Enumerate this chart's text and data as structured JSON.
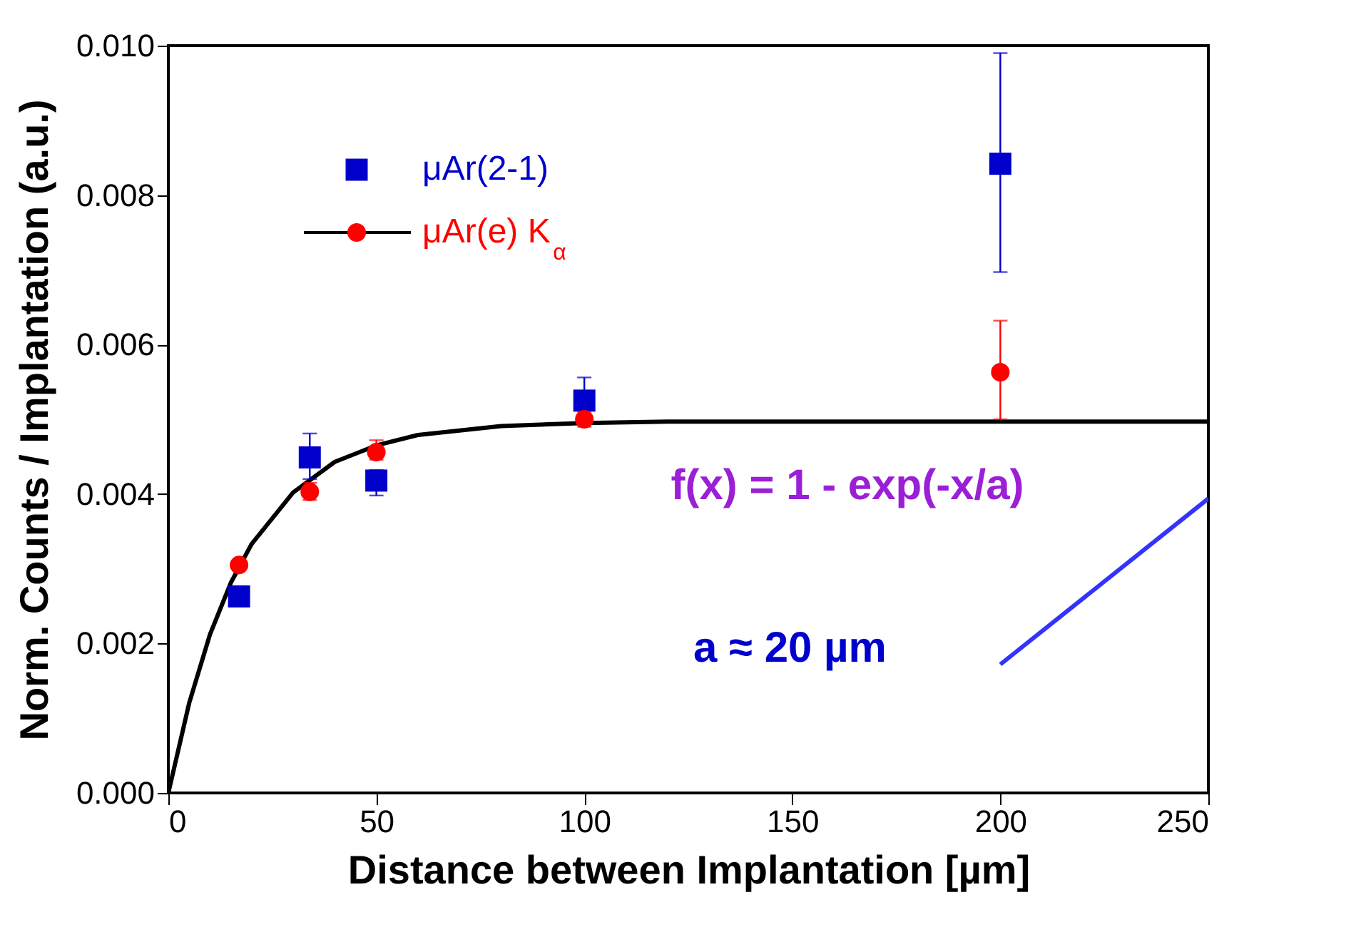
{
  "chart_data": {
    "type": "scatter",
    "xlabel": "Distance between Implantation [µm]",
    "ylabel": "Norm. Counts / Implantation (a.u.)",
    "xlim": [
      0,
      250
    ],
    "xticks": [
      0,
      50,
      100,
      150,
      200,
      250
    ],
    "ylim": [
      0,
      0.01
    ],
    "yticks": [
      {
        "value": 0,
        "label": "0.000"
      },
      {
        "value": 0.002,
        "label": "0.002"
      },
      {
        "value": 0.004,
        "label": "0.004"
      },
      {
        "value": 0.006,
        "label": "0.006"
      },
      {
        "value": 0.008,
        "label": "0.008"
      },
      {
        "value": 0.01,
        "label": "0.010"
      }
    ],
    "grid": false,
    "legend": "top left",
    "annotations": [
      "f(x) = 1 - exp(-x/a)",
      "a ≈ 20 µm"
    ],
    "series": [
      {
        "type": "line",
        "color": "#000000",
        "marker": "none",
        "line_style": "solid",
        "x": [
          0,
          5,
          10,
          15,
          20,
          30,
          40,
          50,
          60,
          80,
          100,
          120,
          150,
          200,
          250
        ],
        "values": [
          0,
          0.0012,
          0.00212,
          0.00281,
          0.00333,
          0.00402,
          0.00443,
          0.00465,
          0.00479,
          0.00491,
          0.00495,
          0.00497,
          0.00497,
          0.00497,
          0.00497
        ]
      },
      {
        "type": "line",
        "color": "#3333ff",
        "marker": "none",
        "line_style": "solid",
        "x": [
          200,
          250
        ],
        "values": [
          0.00172,
          0.00394
        ]
      },
      {
        "name": "μAr(2-1)",
        "color": "#0000cc",
        "marker": "square",
        "x": [
          17,
          34,
          50,
          100,
          200
        ],
        "values": [
          0.00263,
          0.00449,
          0.00418,
          0.00525,
          0.00842
        ],
        "errors": [
          null,
          [
            0.0042,
            0.00481
          ],
          [
            0.00398,
            0.00432
          ],
          [
            0.00505,
            0.00556
          ],
          [
            0.00697,
            0.0099
          ]
        ]
      },
      {
        "name": "μAr(e) K$_{α}$",
        "color": "#ff0000",
        "marker": "circle",
        "x": [
          17,
          34,
          50,
          100,
          200
        ],
        "values": [
          0.00305,
          0.00403,
          0.00456,
          0.005,
          0.00563
        ],
        "errors": [
          null,
          [
            0.00392,
            0.00415
          ],
          [
            0.00446,
            0.00472
          ],
          [
            0.0049,
            0.0051
          ],
          [
            0.005,
            0.00632
          ]
        ]
      }
    ]
  }
}
